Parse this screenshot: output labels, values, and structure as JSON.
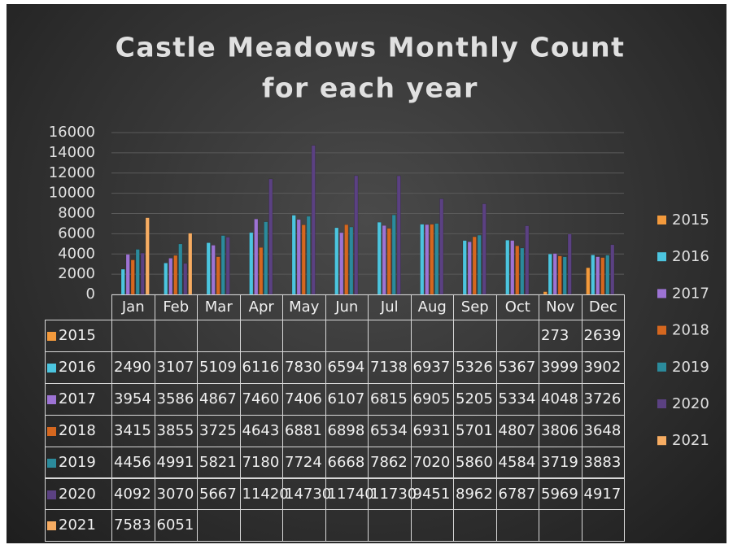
{
  "chart_data": {
    "type": "bar",
    "title": [
      "Castle Meadows Monthly Count",
      "for each year"
    ],
    "categories": [
      "Jan",
      "Feb",
      "Mar",
      "Apr",
      "May",
      "Jun",
      "Jul",
      "Aug",
      "Sep",
      "Oct",
      "Nov",
      "Dec"
    ],
    "series": [
      {
        "name": "2015",
        "color": "#f39a3c",
        "values": [
          null,
          null,
          null,
          null,
          null,
          null,
          null,
          null,
          null,
          null,
          273,
          2639
        ]
      },
      {
        "name": "2016",
        "color": "#4cc5df",
        "values": [
          2490,
          3107,
          5109,
          6116,
          7830,
          6594,
          7138,
          6937,
          5326,
          5367,
          3999,
          3902
        ]
      },
      {
        "name": "2017",
        "color": "#9d73d4",
        "values": [
          3954,
          3586,
          4867,
          7460,
          7406,
          6107,
          6815,
          6905,
          5205,
          5334,
          4048,
          3726
        ]
      },
      {
        "name": "2018",
        "color": "#d5671f",
        "values": [
          3415,
          3855,
          3725,
          4643,
          6881,
          6898,
          6534,
          6931,
          5701,
          4807,
          3806,
          3648
        ]
      },
      {
        "name": "2019",
        "color": "#2b8b9c",
        "values": [
          4456,
          4991,
          5821,
          7180,
          7724,
          6668,
          7862,
          7020,
          5860,
          4584,
          3719,
          3883
        ]
      },
      {
        "name": "2020",
        "color": "#5b4182",
        "values": [
          4092,
          3070,
          5667,
          11420,
          14730,
          11740,
          11730,
          9451,
          8962,
          6787,
          5969,
          4917
        ]
      },
      {
        "name": "2021",
        "color": "#f6ac62",
        "values": [
          7583,
          6051,
          null,
          null,
          null,
          null,
          null,
          null,
          null,
          null,
          null,
          null
        ]
      }
    ],
    "ylim": [
      0,
      16000
    ],
    "yticks": [
      0,
      2000,
      4000,
      6000,
      8000,
      10000,
      12000,
      14000,
      16000
    ],
    "grid": true,
    "legend": "right"
  }
}
